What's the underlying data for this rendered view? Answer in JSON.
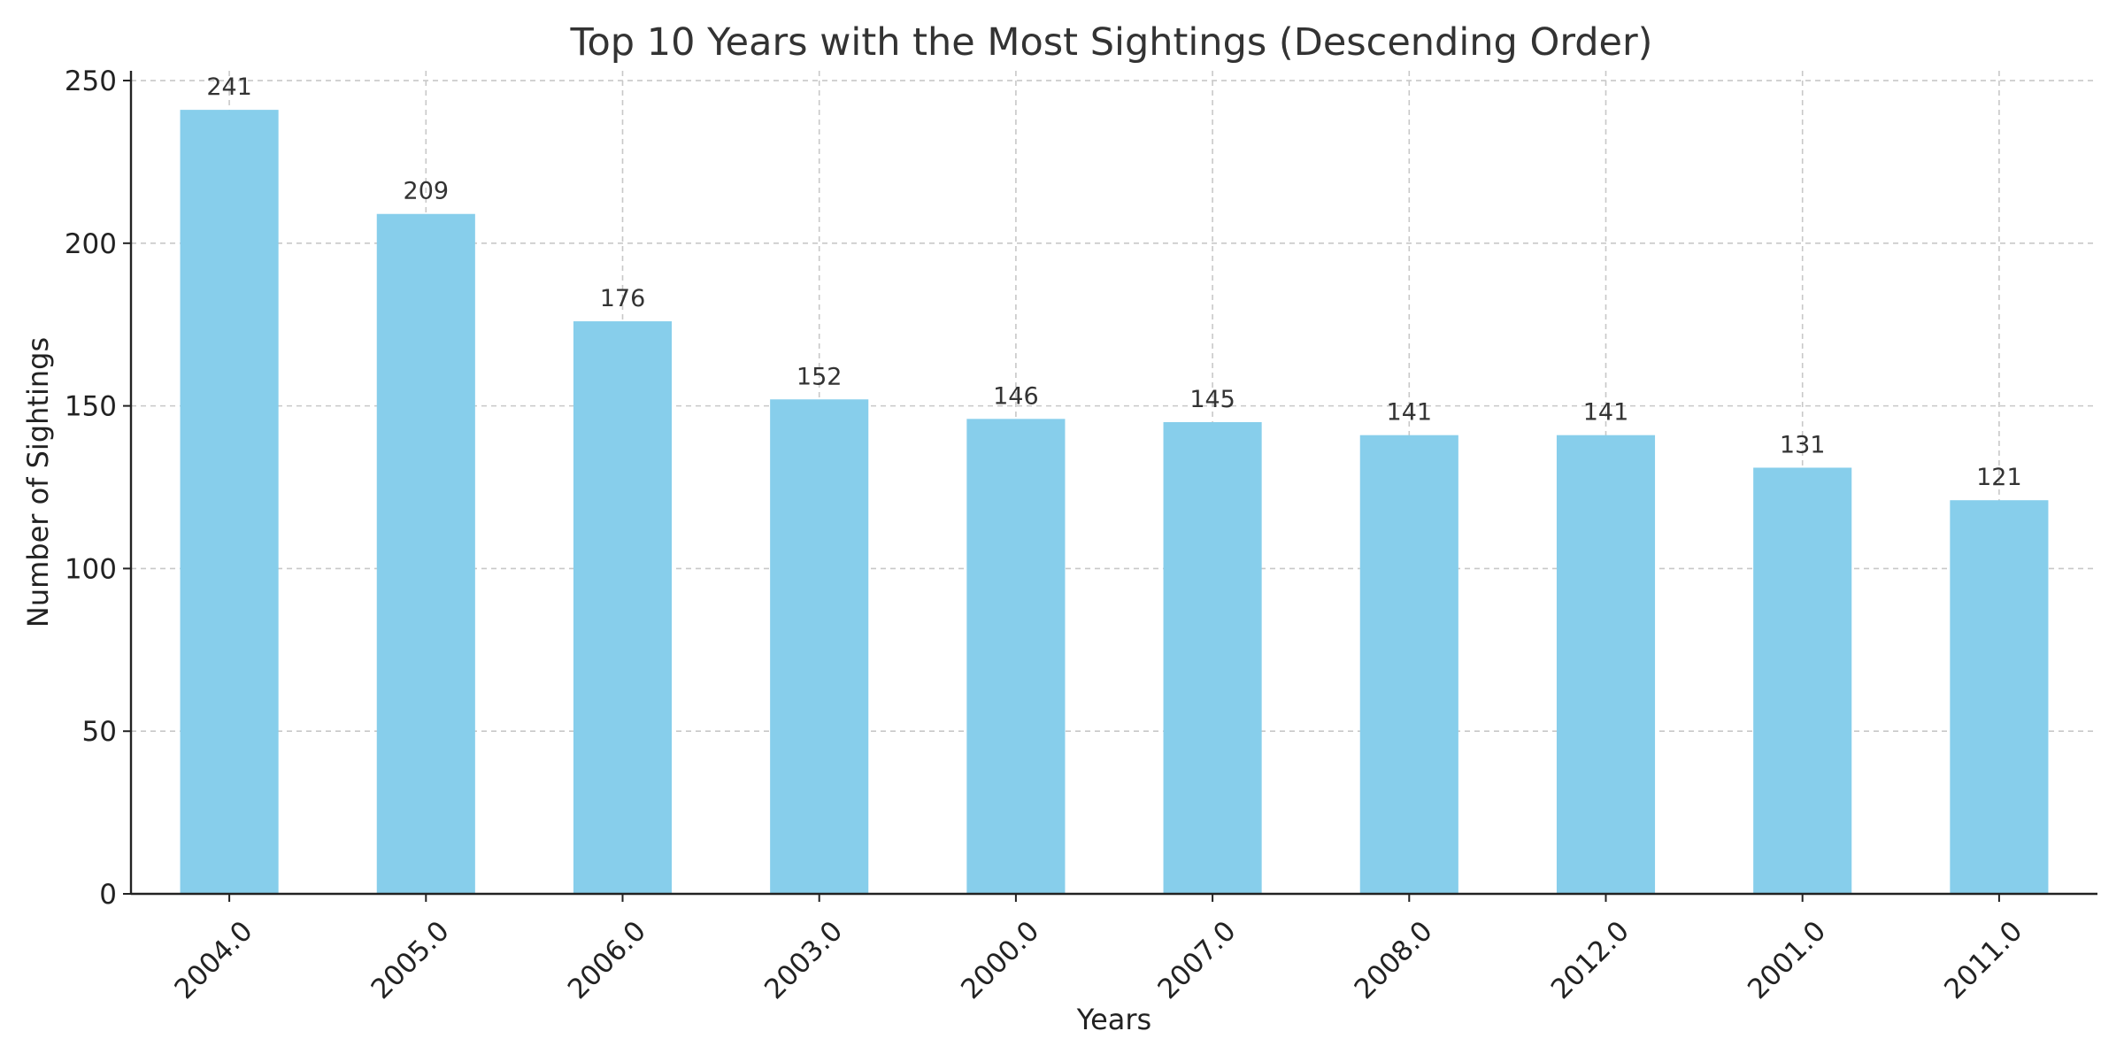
{
  "chart_data": {
    "type": "bar",
    "title": "Top 10 Years with the Most Sightings (Descending Order)",
    "xlabel": "Years",
    "ylabel": "Number of Sightings",
    "categories": [
      "2004.0",
      "2005.0",
      "2006.0",
      "2003.0",
      "2000.0",
      "2007.0",
      "2008.0",
      "2012.0",
      "2001.0",
      "2011.0"
    ],
    "values": [
      241,
      209,
      176,
      152,
      146,
      145,
      141,
      141,
      131,
      121
    ],
    "data_labels": [
      "241",
      "209",
      "176",
      "152",
      "146",
      "145",
      "141",
      "141",
      "131",
      "121"
    ],
    "ylim": [
      0,
      253
    ],
    "yticks": [
      0,
      50,
      100,
      150,
      200,
      250
    ],
    "ytick_labels": [
      "0",
      "50",
      "100",
      "150",
      "200",
      "250"
    ],
    "grid": true,
    "legend": "none",
    "bar_color": "#87CEEB"
  }
}
